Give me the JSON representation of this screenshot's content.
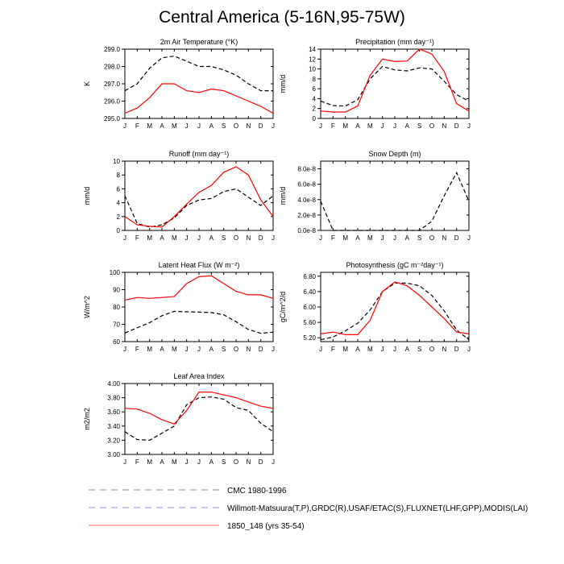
{
  "figure": {
    "title": "Central America (5-16N,95-75W)",
    "months": [
      "J",
      "F",
      "M",
      "A",
      "M",
      "J",
      "J",
      "A",
      "S",
      "O",
      "N",
      "D",
      "J"
    ]
  },
  "legend": {
    "items": [
      {
        "label": "CMC 1980-1996",
        "style": "dashed",
        "color": "#8888aa"
      },
      {
        "label": "Willmott-Matsuura(T,P),GRDC(R),USAF/ETAC(S),FLUXNET(LHF,GPP),MODIS(LAI)",
        "style": "dashed",
        "color": "#8888ee"
      },
      {
        "label": "1850_148 (yrs 35-54)",
        "style": "solid",
        "color": "#ff0000"
      }
    ]
  },
  "chart_data": [
    {
      "type": "line",
      "title": "2m Air Temperature (°K)",
      "ylabel": "K",
      "ylim": [
        295.0,
        299.0
      ],
      "yticks": [
        "295.0",
        "296.0",
        "297.0",
        "298.0",
        "299.0"
      ],
      "x": [
        "J",
        "F",
        "M",
        "A",
        "M",
        "J",
        "J",
        "A",
        "S",
        "O",
        "N",
        "D",
        "J"
      ],
      "series": [
        {
          "name": "CMC 1980-1996",
          "style": "dashed",
          "color": "#000000",
          "values": [
            296.6,
            297.0,
            297.9,
            298.5,
            298.6,
            298.3,
            298.0,
            298.0,
            297.8,
            297.5,
            297.0,
            296.6,
            296.6
          ]
        },
        {
          "name": "1850_148 (yrs 35-54)",
          "style": "solid",
          "color": "#ff0000",
          "values": [
            295.3,
            295.6,
            296.2,
            297.0,
            297.0,
            296.6,
            296.5,
            296.7,
            296.6,
            296.3,
            296.0,
            295.7,
            295.3
          ]
        }
      ]
    },
    {
      "type": "line",
      "title": "Precipitation (mm day⁻¹)",
      "ylabel": "mm/d",
      "ylim": [
        0,
        14
      ],
      "yticks": [
        "0",
        "2",
        "4",
        "6",
        "8",
        "10",
        "12",
        "14"
      ],
      "x": [
        "J",
        "F",
        "M",
        "A",
        "M",
        "J",
        "J",
        "A",
        "S",
        "O",
        "N",
        "D",
        "J"
      ],
      "series": [
        {
          "name": "Willmott-Matsuura",
          "style": "dashed",
          "color": "#000000",
          "values": [
            3.5,
            2.6,
            2.5,
            3.8,
            8.0,
            10.5,
            9.8,
            9.6,
            10.2,
            10.0,
            7.5,
            4.8,
            3.5
          ]
        },
        {
          "name": "1850_148 (yrs 35-54)",
          "style": "solid",
          "color": "#ff0000",
          "values": [
            1.5,
            1.3,
            1.3,
            2.5,
            8.7,
            12.0,
            11.5,
            11.6,
            14.0,
            13.0,
            9.5,
            3.0,
            1.5
          ]
        }
      ]
    },
    {
      "type": "line",
      "title": "Runoff (mm day⁻¹)",
      "ylabel": "mm/d",
      "ylim": [
        0,
        10
      ],
      "yticks": [
        "0",
        "2",
        "4",
        "6",
        "8",
        "10"
      ],
      "x": [
        "J",
        "F",
        "M",
        "A",
        "M",
        "J",
        "J",
        "A",
        "S",
        "O",
        "N",
        "D",
        "J"
      ],
      "series": [
        {
          "name": "GRDC",
          "style": "dashed",
          "color": "#000000",
          "values": [
            5.0,
            1.0,
            0.5,
            0.8,
            1.8,
            3.6,
            4.4,
            4.6,
            5.6,
            6.0,
            4.8,
            3.6,
            5.0
          ]
        },
        {
          "name": "1850_148 (yrs 35-54)",
          "style": "solid",
          "color": "#ff0000",
          "values": [
            2.0,
            0.8,
            0.6,
            0.5,
            2.0,
            3.8,
            5.5,
            6.5,
            8.4,
            9.2,
            8.0,
            4.4,
            2.0
          ]
        }
      ]
    },
    {
      "type": "line",
      "title": "Snow Depth (m)",
      "ylabel": "mm/d",
      "ylim": [
        0,
        9e-08
      ],
      "yticks": [
        "0.0e-8",
        "2.0e-8",
        "4.0e-8",
        "6.0e-8",
        "8.0e-8"
      ],
      "x": [
        "J",
        "F",
        "M",
        "A",
        "M",
        "J",
        "J",
        "A",
        "S",
        "O",
        "N",
        "D",
        "J"
      ],
      "series": [
        {
          "name": "USAF/ETAC",
          "style": "dashed",
          "color": "#000000",
          "values": [
            3.8e-08,
            0,
            0,
            0,
            0,
            0,
            0,
            0,
            0,
            1.2e-08,
            4.5e-08,
            7.5e-08,
            3.8e-08
          ]
        }
      ]
    },
    {
      "type": "line",
      "title": "Latent Heat Flux (W m⁻²)",
      "ylabel": "W/m^2",
      "ylim": [
        60,
        100
      ],
      "yticks": [
        "60",
        "70",
        "80",
        "90",
        "100"
      ],
      "x": [
        "J",
        "F",
        "M",
        "A",
        "M",
        "J",
        "J",
        "A",
        "S",
        "O",
        "N",
        "D",
        "J"
      ],
      "series": [
        {
          "name": "FLUXNET",
          "style": "dashed",
          "color": "#000000",
          "values": [
            65.0,
            68.0,
            71.0,
            75.0,
            77.5,
            77.2,
            77.0,
            76.8,
            75.5,
            71.5,
            67.0,
            64.8,
            65.5
          ]
        },
        {
          "name": "1850_148 (yrs 35-54)",
          "style": "solid",
          "color": "#ff0000",
          "values": [
            84.0,
            85.5,
            85.0,
            85.5,
            86.0,
            93.5,
            97.5,
            98.0,
            93.5,
            89.0,
            87.0,
            87.0,
            85.0
          ]
        }
      ]
    },
    {
      "type": "line",
      "title": "Photosynthesis (gC m⁻²day⁻¹)",
      "ylabel": "gC/m^2/d",
      "ylim": [
        5.1,
        6.9
      ],
      "yticks": [
        "5.20",
        "5.60",
        "6.00",
        "6.40",
        "6.80"
      ],
      "x": [
        "J",
        "F",
        "M",
        "A",
        "M",
        "J",
        "J",
        "A",
        "S",
        "O",
        "N",
        "D",
        "J"
      ],
      "series": [
        {
          "name": "FLUXNET",
          "style": "dashed",
          "color": "#000000",
          "values": [
            5.15,
            5.22,
            5.38,
            5.58,
            5.92,
            6.4,
            6.62,
            6.62,
            6.55,
            6.3,
            5.9,
            5.4,
            5.15
          ]
        },
        {
          "name": "1850_148 (yrs 35-54)",
          "style": "solid",
          "color": "#ff0000",
          "values": [
            5.3,
            5.35,
            5.28,
            5.28,
            5.65,
            6.4,
            6.65,
            6.55,
            6.3,
            6.0,
            5.7,
            5.35,
            5.3
          ]
        }
      ]
    },
    {
      "type": "line",
      "title": "Leaf Area Index",
      "ylabel": "m2/m2",
      "ylim": [
        3.0,
        4.0
      ],
      "yticks": [
        "3.00",
        "3.20",
        "3.40",
        "3.60",
        "3.80",
        "4.00"
      ],
      "x": [
        "J",
        "F",
        "M",
        "A",
        "M",
        "J",
        "J",
        "A",
        "S",
        "O",
        "N",
        "D",
        "J"
      ],
      "series": [
        {
          "name": "MODIS",
          "style": "dashed",
          "color": "#000000",
          "values": [
            3.32,
            3.21,
            3.2,
            3.3,
            3.4,
            3.7,
            3.8,
            3.81,
            3.78,
            3.66,
            3.62,
            3.44,
            3.32
          ]
        },
        {
          "name": "1850_148 (yrs 35-54)",
          "style": "solid",
          "color": "#ff0000",
          "values": [
            3.65,
            3.64,
            3.58,
            3.49,
            3.43,
            3.62,
            3.88,
            3.88,
            3.84,
            3.8,
            3.74,
            3.68,
            3.65
          ]
        }
      ]
    }
  ]
}
